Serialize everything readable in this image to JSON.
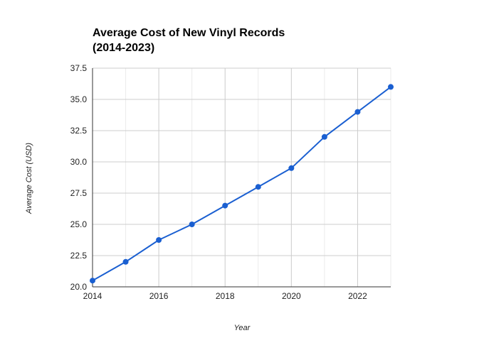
{
  "chart_data": {
    "type": "line",
    "title_lines": [
      "Average Cost of New Vinyl Records",
      "(2014-2023)"
    ],
    "xlabel": "Year",
    "ylabel": "Average Cost (USD)",
    "xlim": [
      2014,
      2023
    ],
    "ylim": [
      20.0,
      37.5
    ],
    "x_ticks": [
      2014,
      2016,
      2018,
      2020,
      2022
    ],
    "y_ticks": [
      "20.0",
      "22.5",
      "25.0",
      "27.5",
      "30.0",
      "32.5",
      "35.0",
      "37.5"
    ],
    "grid": true,
    "legend": "none",
    "line_color": "#1a5fd1",
    "series": [
      {
        "x": [
          2014,
          2015,
          2016,
          2017,
          2018,
          2019,
          2020,
          2021,
          2022,
          2023
        ],
        "values": [
          20.5,
          22.0,
          23.75,
          25.0,
          26.5,
          28.0,
          29.5,
          32.0,
          34.0,
          36.0
        ]
      }
    ]
  }
}
